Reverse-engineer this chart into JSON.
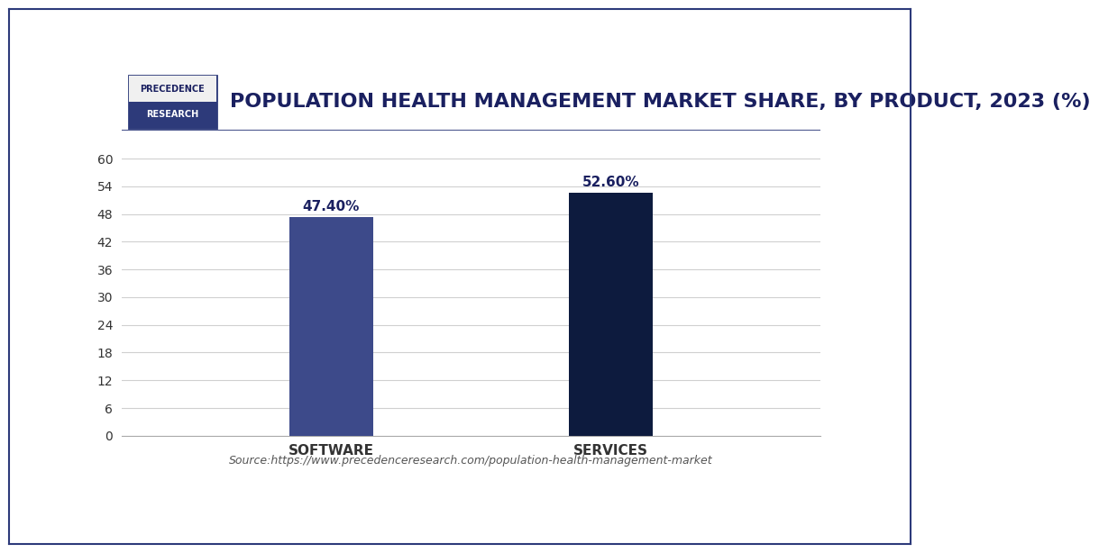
{
  "categories": [
    "SOFTWARE",
    "SERVICES"
  ],
  "values": [
    47.4,
    52.6
  ],
  "bar_colors": [
    "#3d4a8a",
    "#0d1b3e"
  ],
  "value_labels": [
    "47.40%",
    "52.60%"
  ],
  "title": "POPULATION HEALTH MANAGEMENT MARKET SHARE, BY PRODUCT, 2023 (%)",
  "ylim": [
    0,
    66
  ],
  "yticks": [
    0,
    6,
    12,
    18,
    24,
    30,
    36,
    42,
    48,
    54,
    60
  ],
  "source_text": "Source:https://www.precedenceresearch.com/population-health-management-market",
  "background_color": "#ffffff",
  "grid_color": "#d0d0d0",
  "label_fontsize": 11,
  "title_fontsize": 16,
  "value_fontsize": 11,
  "source_fontsize": 9,
  "logo_text_top": "PRECEDENCE",
  "logo_text_bottom": "RESEARCH",
  "logo_top_bg": "#f0f0f0",
  "logo_bottom_bg": "#2d3a7a",
  "logo_text_top_color": "#1a2060",
  "logo_text_bottom_color": "#ffffff",
  "logo_border_color": "#2d3a7a",
  "bar_width": 0.12,
  "x_positions": [
    0.3,
    0.7
  ],
  "xlim": [
    0.0,
    1.0
  ],
  "title_color": "#1a2060",
  "tick_color": "#333333",
  "source_color": "#555555",
  "bottom_spine_color": "#aaaaaa",
  "header_line_color": "#2d3a7a",
  "header_bg_color": "#ffffff"
}
